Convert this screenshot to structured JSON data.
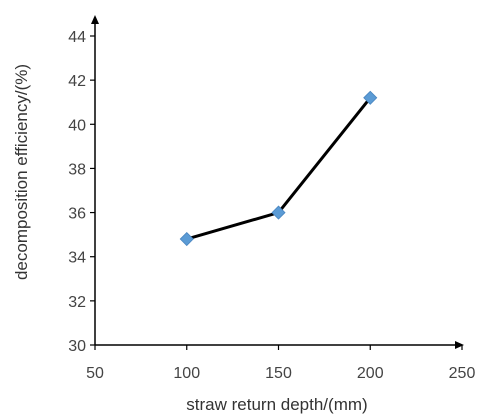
{
  "chart_data": {
    "type": "line",
    "x": [
      100,
      150,
      200
    ],
    "series": [
      {
        "values": [
          34.8,
          36.0,
          41.2
        ]
      }
    ],
    "xlabel": "straw return depth/(mm)",
    "ylabel": "decomposition efficiency/(%)",
    "xlim": [
      50,
      250
    ],
    "ylim": [
      30,
      44
    ],
    "xticks": [
      "50",
      "100",
      "150",
      "200",
      "250"
    ],
    "yticks": [
      "30",
      "32",
      "34",
      "36",
      "38",
      "40",
      "42",
      "44"
    ],
    "grid": false,
    "legend": "none",
    "colors": {
      "line": "#000000",
      "marker": "#5b9bd5",
      "axis": "#000000"
    }
  }
}
